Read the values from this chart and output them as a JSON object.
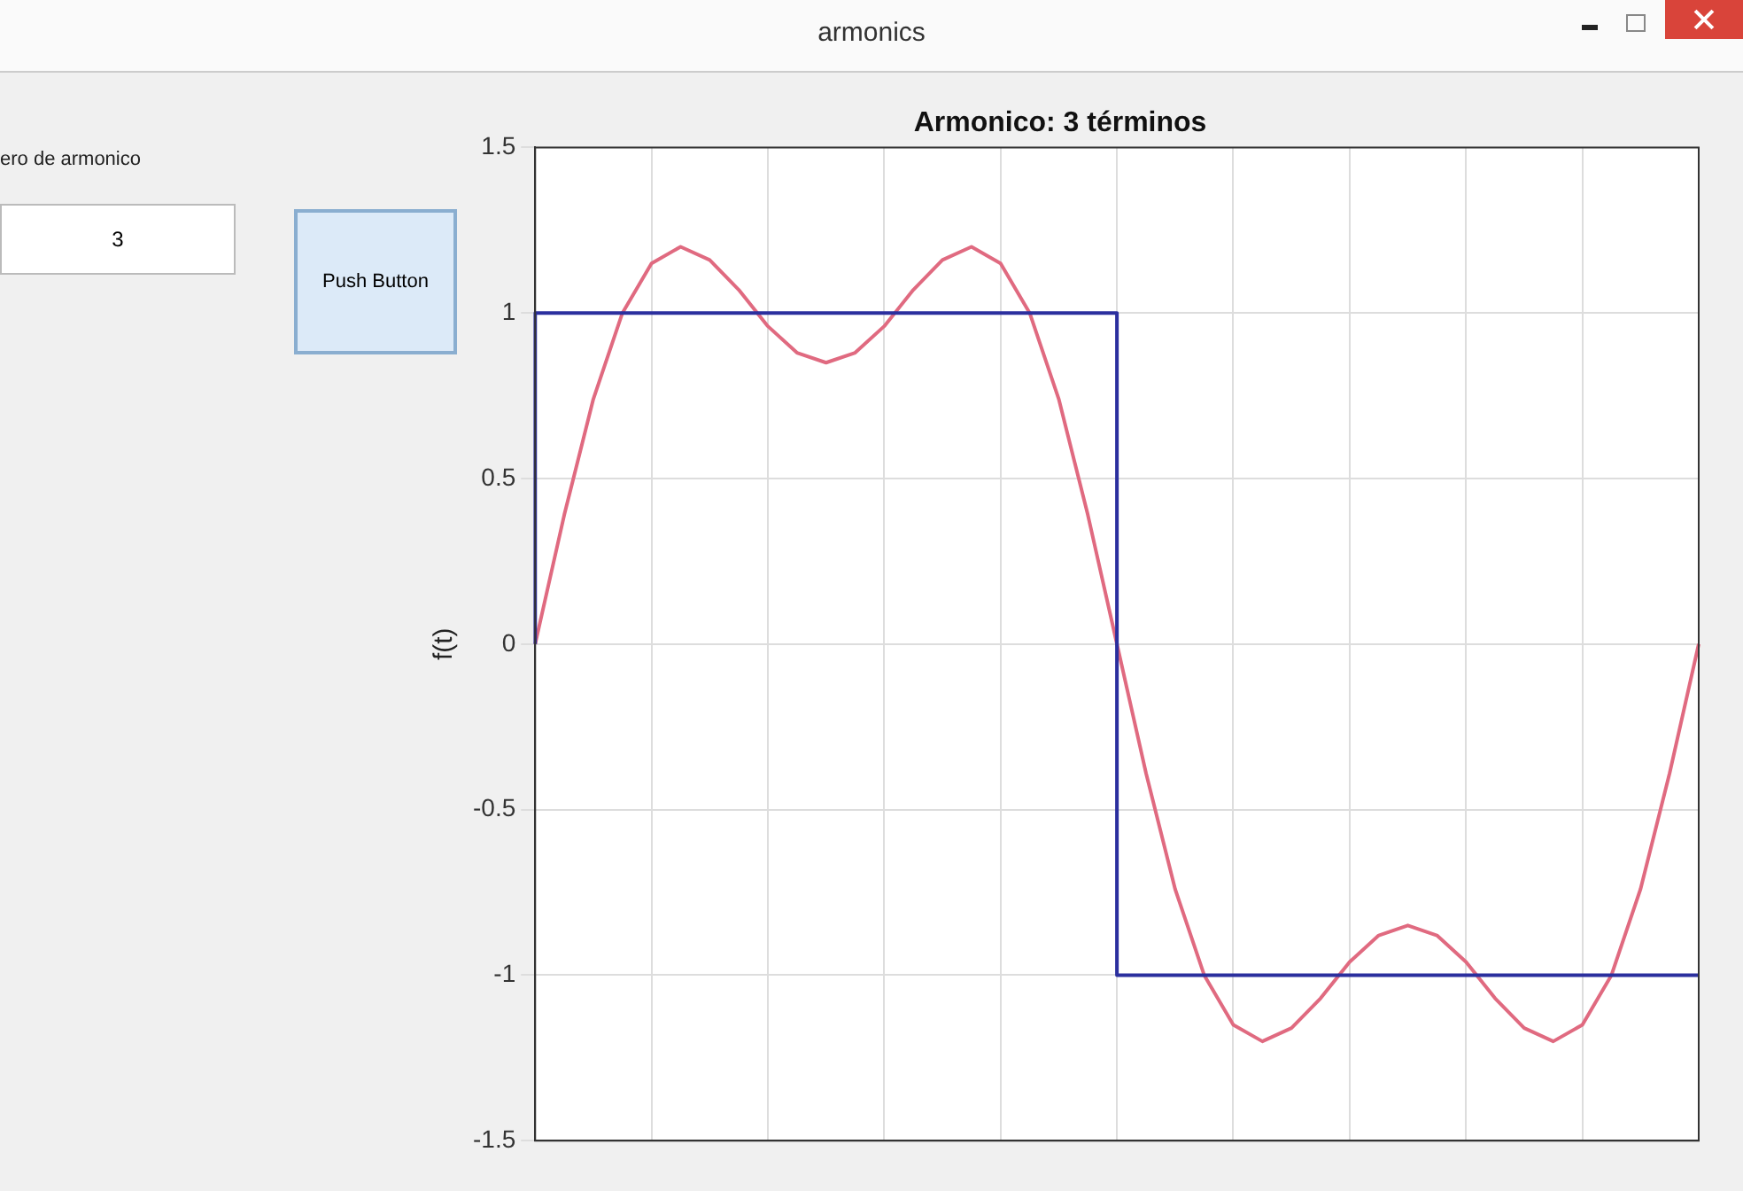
{
  "chart_data": {
    "type": "line",
    "title": "Armonico: 3 términos",
    "ylabel": "f(t)",
    "annotations": [
      "armonics",
      "ero de armonico",
      "3",
      "Push Button"
    ],
    "categories": [
      null,
      null,
      null,
      null,
      null,
      null,
      null,
      null,
      null,
      null,
      null,
      null,
      null,
      null,
      null,
      null,
      null,
      null,
      null,
      null,
      null,
      null,
      null,
      null,
      null,
      null,
      null,
      null,
      null,
      null,
      null,
      null,
      null,
      null,
      null,
      null,
      null,
      null,
      null,
      null,
      null
    ],
    "ylim": [
      -1.5,
      1.5
    ],
    "yticks": [
      -1.5,
      -1,
      -0.5,
      0,
      0.5,
      1,
      1.5
    ],
    "grid": true,
    "marker": "none",
    "line_style": "solid",
    "series": [
      {
        "type": "step",
        "color": "#2b2f9e",
        "values": [
          0,
          1,
          1,
          1,
          1,
          1,
          1,
          1,
          1,
          1,
          1,
          1,
          1,
          1,
          1,
          1,
          1,
          1,
          1,
          1,
          1,
          -1,
          -1,
          -1,
          -1,
          -1,
          -1,
          -1,
          -1,
          -1,
          -1,
          -1,
          -1,
          -1,
          -1,
          -1,
          -1,
          -1,
          -1,
          -1,
          -1
        ]
      },
      {
        "color": "#e06a80",
        "values": [
          0,
          0.39,
          0.74,
          1.0,
          1.15,
          1.2,
          1.16,
          1.07,
          0.96,
          0.88,
          0.85,
          0.88,
          0.96,
          1.07,
          1.16,
          1.2,
          1.15,
          1.0,
          0.74,
          0.39,
          0,
          -0.39,
          -0.74,
          -1.0,
          -1.15,
          -1.2,
          -1.16,
          -1.07,
          -0.96,
          -0.88,
          -0.85,
          -0.88,
          -0.96,
          -1.07,
          -1.16,
          -1.2,
          -1.15,
          -1.0,
          -0.74,
          -0.39,
          0
        ]
      }
    ]
  }
}
